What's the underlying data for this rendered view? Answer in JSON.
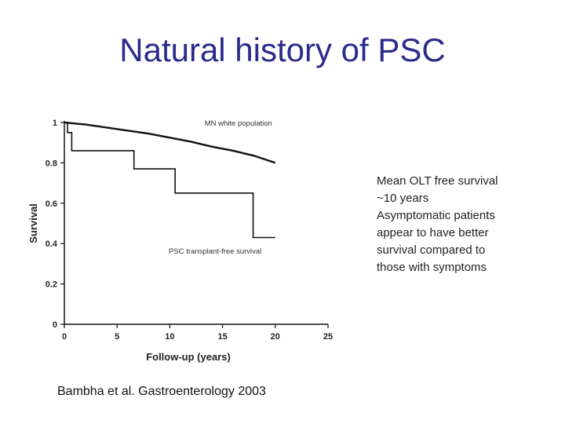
{
  "slide": {
    "title": "Natural history of PSC",
    "notes": [
      "Mean OLT free survival",
      "~10 years",
      "Asymptomatic patients",
      "appear to have better",
      "survival compared to",
      "those with symptoms"
    ],
    "citation": "Bambha et al. Gastroenterology 2003"
  },
  "chart_data": {
    "type": "line",
    "xlabel": "Follow-up (years)",
    "ylabel": "Survival",
    "xlim": [
      0,
      25
    ],
    "ylim": [
      0,
      1
    ],
    "x_ticks": [
      0,
      5,
      10,
      15,
      20,
      25
    ],
    "y_ticks": [
      0,
      0.2,
      0.4,
      0.6,
      0.8,
      1
    ],
    "y_tick_labels": [
      "0",
      "0.2",
      "0.4",
      "0.6",
      "0.8",
      "1"
    ],
    "grid": false,
    "series": [
      {
        "name": "MN white population",
        "style": "smooth",
        "color": "#111111",
        "x": [
          0,
          2,
          4,
          6,
          8,
          10,
          12,
          14,
          16,
          18,
          20
        ],
        "y": [
          1.0,
          0.99,
          0.975,
          0.96,
          0.945,
          0.925,
          0.905,
          0.88,
          0.86,
          0.835,
          0.8
        ]
      },
      {
        "name": "PSC transplant-free survival",
        "style": "step",
        "color": "#111111",
        "x": [
          0,
          0.3,
          0.7,
          6.6,
          10.5,
          17.9,
          20
        ],
        "y": [
          1.0,
          0.95,
          0.86,
          0.77,
          0.65,
          0.43,
          0.43
        ]
      }
    ]
  }
}
